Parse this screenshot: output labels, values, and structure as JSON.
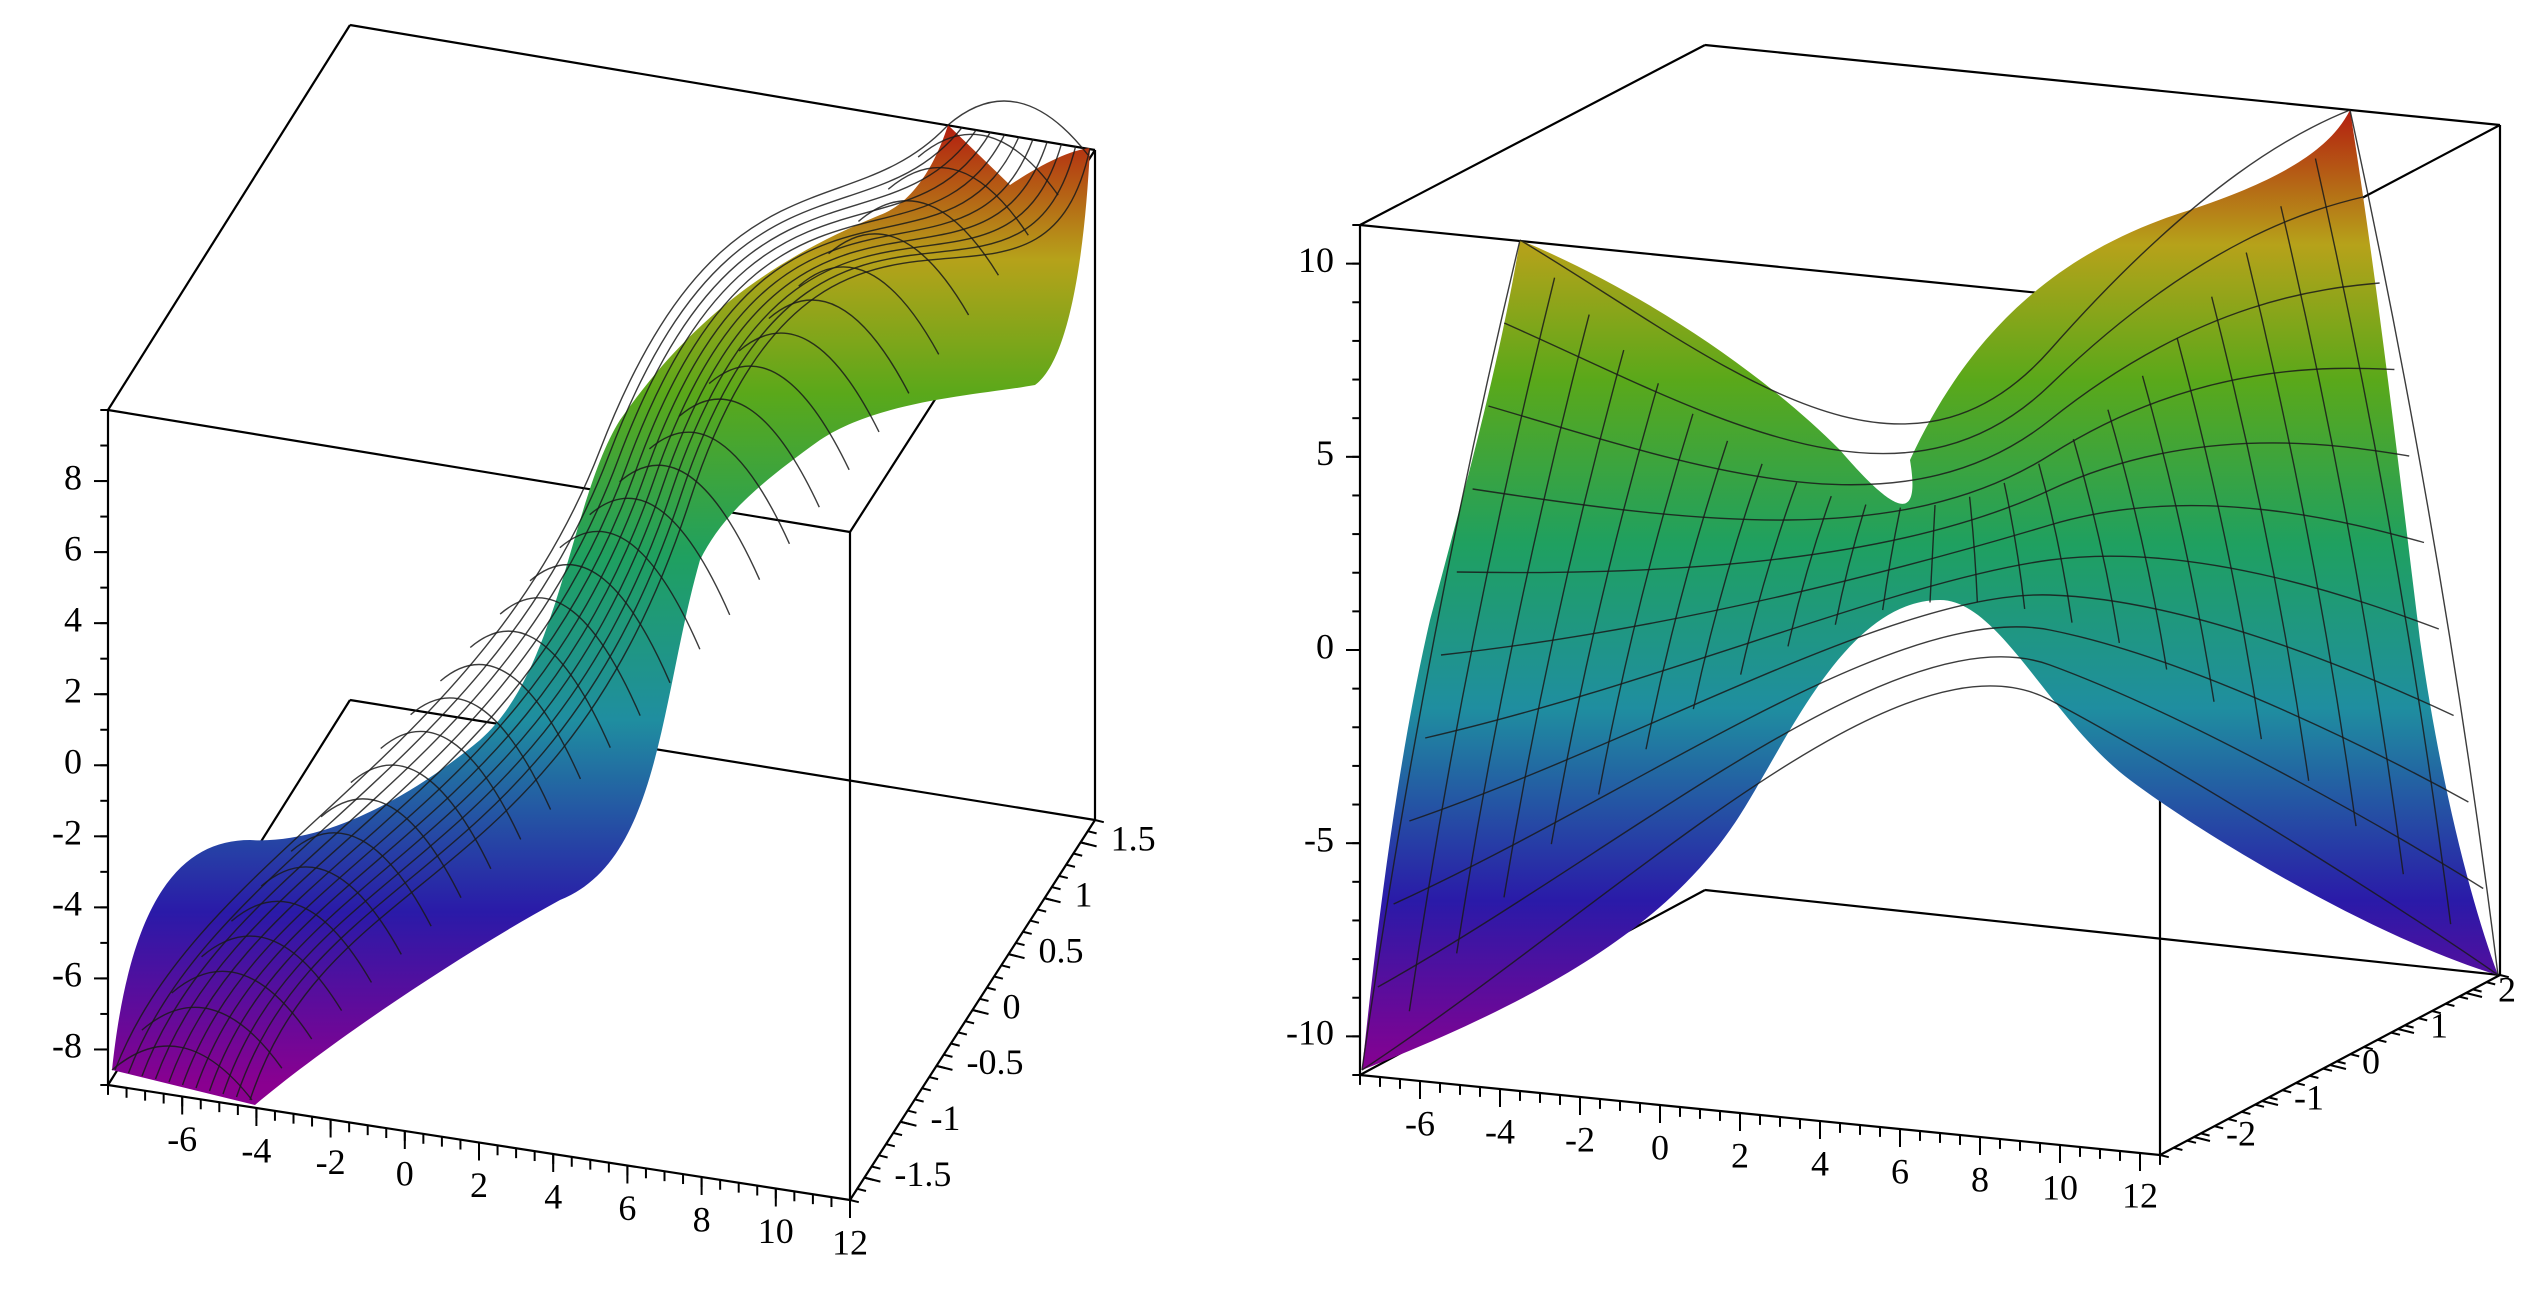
{
  "chart_data": [
    {
      "type": "surface3d",
      "title": "",
      "xlabel": "",
      "ylabel": "",
      "zlabel": "",
      "x_ticks": [
        "-6",
        "-4",
        "-2",
        "0",
        "2",
        "4",
        "6",
        "8",
        "10",
        "12"
      ],
      "y_ticks": [
        "-1.5",
        "-1",
        "-0.5",
        "0",
        "0.5",
        "1",
        "1.5"
      ],
      "z_ticks": [
        "-8",
        "-6",
        "-4",
        "-2",
        "0",
        "2",
        "4",
        "6",
        "8"
      ],
      "xlim": [
        -8,
        12
      ],
      "ylim": [
        -1.7,
        1.7
      ],
      "zlim": [
        -9,
        10
      ],
      "colormap": [
        "#7a007a",
        "#1a1aa0",
        "#1f8a9a",
        "#1fa050",
        "#7aa81a",
        "#b8a01a",
        "#b03010"
      ],
      "surface": "sheet rising from z=-9 near x=-7 to z=9 near x=12, steep S-shaped step near x=2"
    },
    {
      "type": "surface3d",
      "title": "",
      "xlabel": "",
      "ylabel": "",
      "zlabel": "",
      "x_ticks": [
        "-6",
        "-4",
        "-2",
        "0",
        "2",
        "4",
        "6",
        "8",
        "10",
        "12"
      ],
      "y_ticks": [
        "-2",
        "-1",
        "0",
        "1",
        "2"
      ],
      "z_ticks": [
        "-10",
        "-5",
        "0",
        "5",
        "10"
      ],
      "xlim": [
        -7.5,
        12.5
      ],
      "ylim": [
        -2.5,
        2.5
      ],
      "zlim": [
        -11,
        11
      ],
      "colormap": [
        "#7a007a",
        "#1a1aa0",
        "#1f8a9a",
        "#1fa050",
        "#7aa81a",
        "#b8a01a",
        "#b03010"
      ],
      "surface": "saddle surface with corners at z=+11 and z=-11, crossing near the center"
    }
  ]
}
